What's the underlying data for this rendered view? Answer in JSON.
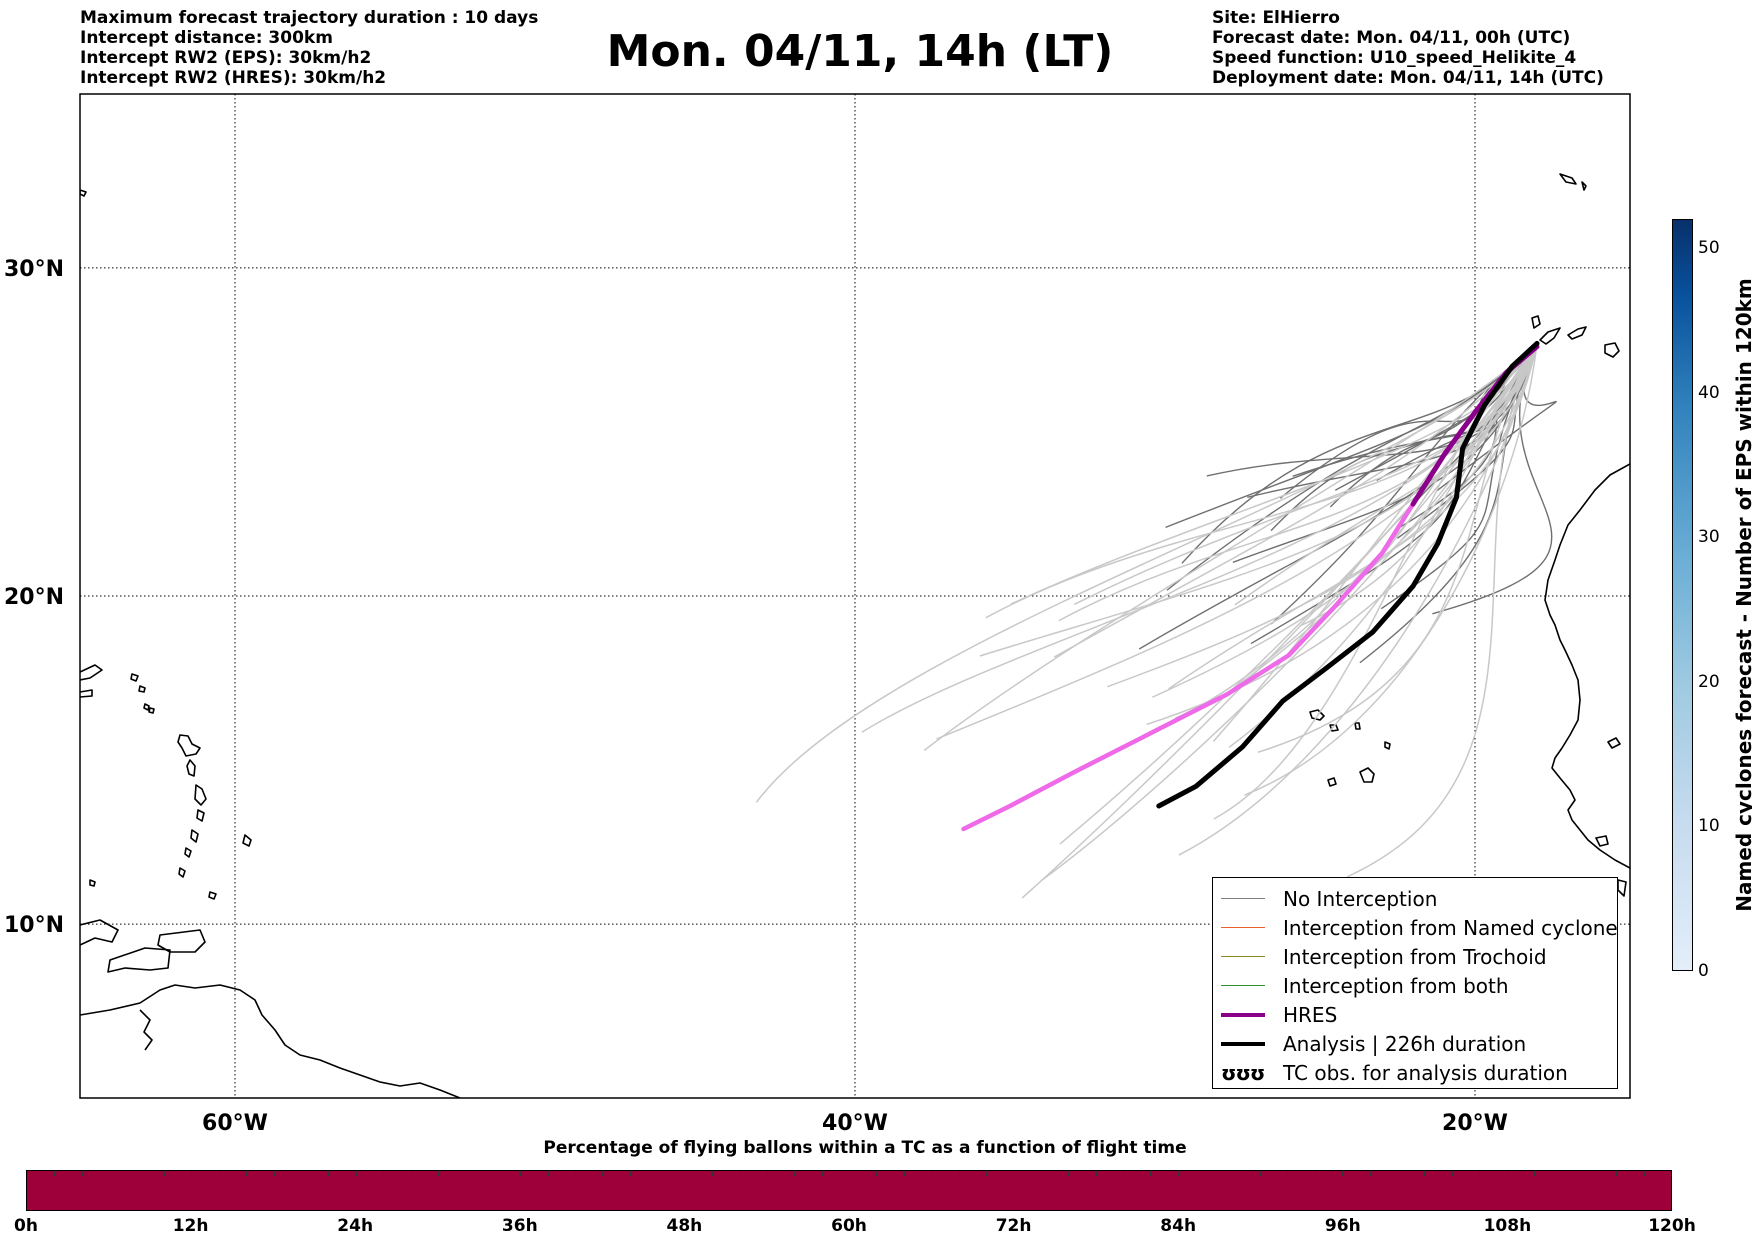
{
  "header": {
    "left": [
      "Maximum forecast trajectory duration : 10 days",
      "Intercept distance: 300km",
      "Intercept RW2 (EPS):  30km/h2",
      "Intercept RW2 (HRES): 30km/h2"
    ],
    "title": "Mon. 04/11, 14h (LT)",
    "right": [
      "Site: ElHierro",
      "Forecast date: Mon. 04/11, 00h (UTC)",
      "Speed function: U10_speed_Helikite_4",
      "Deployment date: Mon. 04/11, 14h (UTC)"
    ]
  },
  "map": {
    "lat_labels": [
      "30°N",
      "20°N",
      "10°N"
    ],
    "lon_labels": [
      "60°W",
      "40°W",
      "20°W"
    ],
    "lat_values": [
      30,
      20,
      10
    ],
    "lon_values": [
      -60,
      -40,
      -20
    ],
    "extent": {
      "lon_min": -65,
      "lon_max": -15,
      "lat_min": 4.7,
      "lat_max": 35.3
    },
    "site": {
      "name": "ElHierro",
      "lon": -18.0,
      "lat": 27.7
    },
    "hres_track": [
      [
        -18.0,
        27.6
      ],
      [
        -19.0,
        26.8
      ],
      [
        -20.0,
        25.6
      ],
      [
        -21.0,
        24.3
      ],
      [
        -22.0,
        22.8
      ],
      [
        -23.0,
        21.3
      ],
      [
        -24.5,
        19.7
      ],
      [
        -26.0,
        18.2
      ],
      [
        -28.0,
        17.0
      ],
      [
        -30.5,
        15.8
      ],
      [
        -33.0,
        14.6
      ],
      [
        -35.0,
        13.6
      ],
      [
        -36.5,
        12.9
      ]
    ],
    "analysis_track": [
      [
        -18.0,
        27.7
      ],
      [
        -18.8,
        27.0
      ],
      [
        -19.7,
        25.8
      ],
      [
        -20.4,
        24.5
      ],
      [
        -20.6,
        23.0
      ],
      [
        -21.2,
        21.6
      ],
      [
        -22.0,
        20.3
      ],
      [
        -23.3,
        18.9
      ],
      [
        -24.8,
        17.8
      ],
      [
        -26.2,
        16.8
      ],
      [
        -27.5,
        15.4
      ],
      [
        -29.0,
        14.2
      ],
      [
        -30.2,
        13.6
      ]
    ]
  },
  "legend": {
    "items": [
      {
        "label": "No Interception",
        "color": "#808080",
        "kind": "line",
        "width": 1.5
      },
      {
        "label": "Interception from Named cyclone",
        "color": "#e8602c",
        "kind": "line",
        "width": 1.5
      },
      {
        "label": "Interception from Trochoid",
        "color": "#8b8b2a",
        "kind": "line",
        "width": 1.5
      },
      {
        "label": "Interception from both",
        "color": "#2e8b2e",
        "kind": "line",
        "width": 1.5
      },
      {
        "label": "HRES",
        "color": "#8b008b",
        "kind": "line",
        "width": 4
      },
      {
        "label": "Analysis | 226h duration",
        "color": "#000000",
        "kind": "line",
        "width": 4
      },
      {
        "label": "TC obs. for analysis duration",
        "color": "#000000",
        "kind": "glyph",
        "glyph": "ʊʊʊ"
      }
    ]
  },
  "colorbar": {
    "label": "Named cyclones forecast - Number of EPS within 120km",
    "ticks": [
      "0",
      "10",
      "20",
      "30",
      "40",
      "50"
    ],
    "tick_values": [
      0,
      10,
      20,
      30,
      40,
      50
    ],
    "max": 52
  },
  "bottom_bar": {
    "caption": "Percentage of flying ballons within a TC as a function of flight time",
    "color": "#9e003a",
    "ticks": [
      "0h",
      "12h",
      "24h",
      "36h",
      "48h",
      "60h",
      "72h",
      "84h",
      "96h",
      "108h",
      "120h"
    ]
  }
}
